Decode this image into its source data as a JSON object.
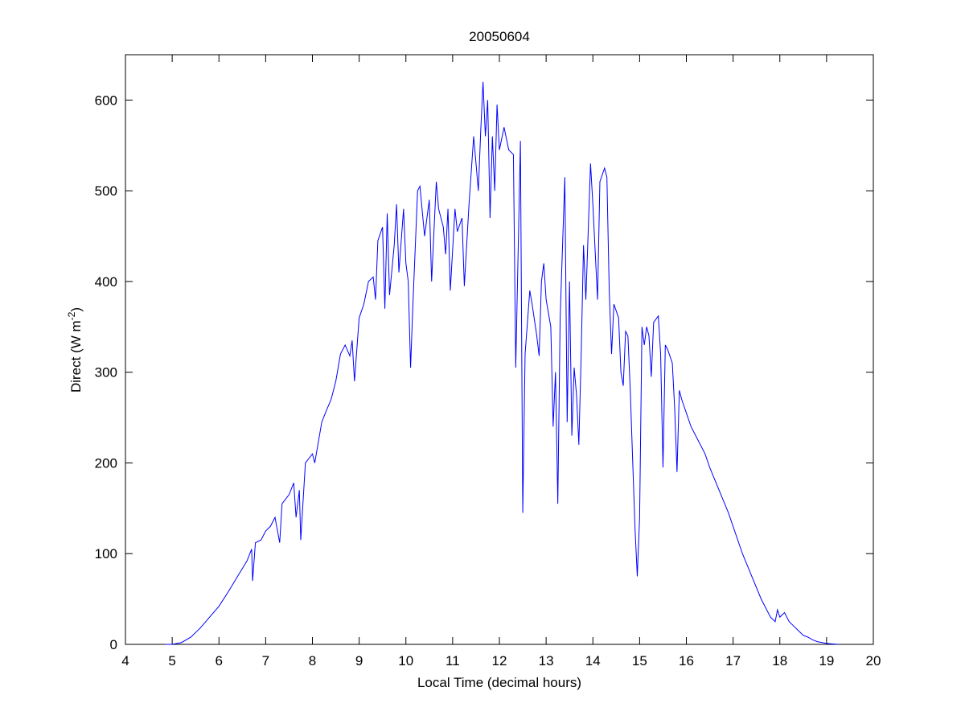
{
  "chart_data": {
    "type": "line",
    "title": "20050604",
    "xlabel": "Local Time (decimal hours)",
    "ylabel_parts": [
      "Direct (W m",
      "-2",
      ")"
    ],
    "xlim": [
      4,
      20
    ],
    "xticks": [
      4,
      5,
      6,
      7,
      8,
      9,
      10,
      11,
      12,
      13,
      14,
      15,
      16,
      17,
      18,
      19,
      20
    ],
    "ylim": [
      0,
      650
    ],
    "yticks": [
      0,
      100,
      200,
      300,
      400,
      500,
      600
    ],
    "grid": false,
    "series": [
      {
        "color": "#0000ff",
        "x": [
          4.85,
          5.0,
          5.2,
          5.4,
          5.6,
          5.8,
          6.0,
          6.2,
          6.4,
          6.6,
          6.7,
          6.72,
          6.78,
          6.9,
          7.0,
          7.1,
          7.2,
          7.3,
          7.35,
          7.5,
          7.6,
          7.65,
          7.72,
          7.75,
          7.85,
          8.0,
          8.05,
          8.2,
          8.3,
          8.4,
          8.5,
          8.6,
          8.7,
          8.8,
          8.85,
          8.9,
          9.0,
          9.1,
          9.2,
          9.3,
          9.35,
          9.4,
          9.5,
          9.55,
          9.6,
          9.65,
          9.75,
          9.8,
          9.85,
          9.95,
          10.0,
          10.05,
          10.1,
          10.15,
          10.25,
          10.3,
          10.4,
          10.5,
          10.55,
          10.65,
          10.7,
          10.8,
          10.85,
          10.9,
          10.95,
          11.05,
          11.1,
          11.2,
          11.25,
          11.35,
          11.45,
          11.55,
          11.6,
          11.65,
          11.7,
          11.75,
          11.8,
          11.85,
          11.9,
          11.95,
          12.0,
          12.1,
          12.2,
          12.3,
          12.35,
          12.45,
          12.5,
          12.55,
          12.65,
          12.7,
          12.8,
          12.85,
          12.9,
          12.95,
          13.0,
          13.1,
          13.15,
          13.2,
          13.25,
          13.3,
          13.4,
          13.45,
          13.5,
          13.55,
          13.6,
          13.65,
          13.7,
          13.75,
          13.8,
          13.85,
          13.95,
          14.0,
          14.1,
          14.15,
          14.25,
          14.3,
          14.35,
          14.4,
          14.45,
          14.55,
          14.6,
          14.65,
          14.7,
          14.75,
          14.8,
          14.9,
          14.95,
          15.0,
          15.05,
          15.1,
          15.15,
          15.2,
          15.25,
          15.3,
          15.4,
          15.45,
          15.5,
          15.55,
          15.6,
          15.7,
          15.75,
          15.8,
          15.85,
          15.9,
          16.0,
          16.1,
          16.25,
          16.4,
          16.5,
          16.7,
          16.9,
          17.0,
          17.2,
          17.4,
          17.6,
          17.8,
          17.9,
          17.95,
          18.0,
          18.1,
          18.2,
          18.3,
          18.4,
          18.5,
          18.6,
          18.7,
          18.8,
          19.0,
          19.25
        ],
        "values": [
          0,
          0,
          2,
          8,
          18,
          30,
          42,
          58,
          75,
          92,
          105,
          70,
          112,
          115,
          125,
          130,
          140,
          112,
          155,
          165,
          178,
          140,
          170,
          115,
          200,
          210,
          200,
          245,
          258,
          270,
          290,
          320,
          330,
          318,
          335,
          290,
          360,
          375,
          400,
          405,
          380,
          445,
          460,
          370,
          475,
          385,
          440,
          485,
          410,
          480,
          420,
          400,
          305,
          375,
          500,
          505,
          450,
          490,
          400,
          510,
          480,
          460,
          430,
          480,
          390,
          480,
          455,
          470,
          395,
          485,
          560,
          500,
          565,
          620,
          560,
          600,
          470,
          560,
          500,
          595,
          545,
          570,
          545,
          540,
          305,
          555,
          145,
          320,
          390,
          375,
          340,
          318,
          400,
          420,
          380,
          350,
          240,
          300,
          155,
          360,
          515,
          245,
          400,
          230,
          305,
          275,
          220,
          320,
          440,
          380,
          530,
          485,
          380,
          510,
          525,
          515,
          390,
          320,
          375,
          360,
          300,
          285,
          345,
          340,
          280,
          130,
          75,
          140,
          350,
          330,
          350,
          340,
          295,
          355,
          362,
          320,
          195,
          330,
          325,
          310,
          260,
          190,
          280,
          270,
          255,
          240,
          225,
          210,
          195,
          170,
          145,
          130,
          100,
          75,
          50,
          30,
          25,
          38,
          30,
          35,
          25,
          20,
          15,
          10,
          8,
          5,
          3,
          1,
          0
        ]
      }
    ]
  }
}
